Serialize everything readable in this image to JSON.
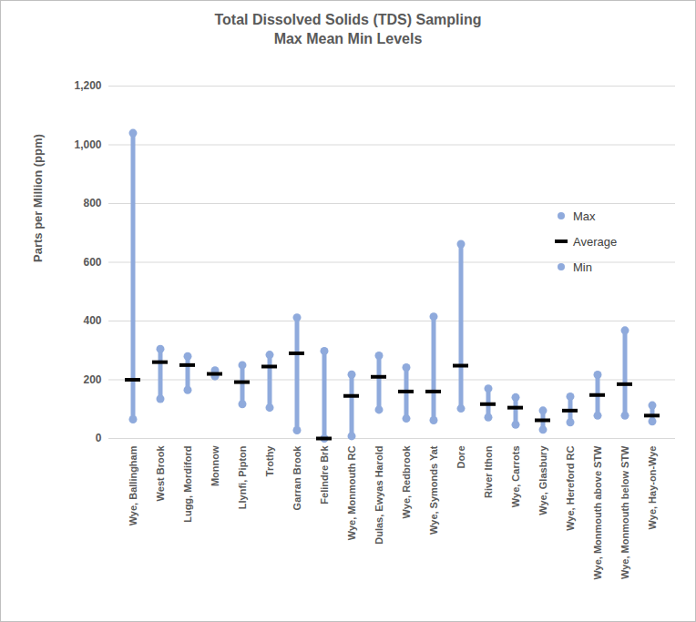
{
  "chart_data": {
    "type": "range",
    "title": "Total Dissolved Solids (TDS) Sampling",
    "subtitle": "Max Mean Min Levels",
    "y_label": "Parts per Million (ppm)",
    "categories": [
      "Wye, Ballingham",
      "West Brook",
      "Lugg, Mordiford",
      "Monnow",
      "Llynfi, Pipton",
      "Trothy",
      "Garran Brook",
      "Felindre Brk",
      "Wye, Monmouth RC",
      "Dulas, Ewyas Harold",
      "Wye, Redbrook",
      "Wye, Symonds Yat",
      "Dore",
      "River Ithon",
      "Wye, Carrots",
      "Wye, Glasbury",
      "Wye, Hereford RC",
      "Wye, Monmouth above STW",
      "Wye, Monmouth below STW",
      "Wye, Hay-on-Wye"
    ],
    "series": [
      {
        "name": "Max",
        "color": "#8faadc",
        "values": [
          1040,
          305,
          280,
          232,
          250,
          285,
          412,
          298,
          218,
          282,
          242,
          415,
          662,
          170,
          140,
          95,
          143,
          217,
          368,
          113
        ]
      },
      {
        "name": "Average",
        "color": "#000000",
        "values": [
          200,
          260,
          250,
          220,
          192,
          245,
          290,
          0,
          145,
          210,
          160,
          160,
          248,
          117,
          105,
          62,
          95,
          148,
          185,
          78
        ]
      },
      {
        "name": "Min",
        "color": "#8faadc",
        "values": [
          65,
          135,
          165,
          212,
          117,
          105,
          28,
          0,
          8,
          98,
          68,
          62,
          102,
          72,
          47,
          30,
          55,
          78,
          78,
          58
        ]
      }
    ],
    "ylim": [
      0,
      1200
    ],
    "yticks": [
      0,
      200,
      400,
      600,
      800,
      1000,
      1200
    ],
    "grid": true,
    "legend": "right"
  }
}
